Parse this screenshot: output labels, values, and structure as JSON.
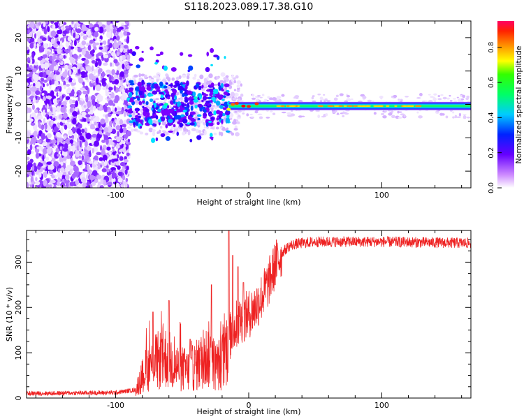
{
  "title": "S118.2023.089.17.38.G10",
  "colors": {
    "snr_line": "#ee2222",
    "spectrogram_noise": "#9933ff"
  },
  "chart_data": [
    {
      "type": "heatmap",
      "name": "spectrogram",
      "xlabel": "Height of straight line (km)",
      "ylabel": "Frequency (Hz)",
      "xlim": [
        -167,
        167
      ],
      "ylim": [
        -25,
        25
      ],
      "xticks": [
        -100,
        0,
        100
      ],
      "yticks": [
        -20,
        -10,
        0,
        10,
        20
      ],
      "colorbar": {
        "label": "Normalized spectral amplitude",
        "range": [
          0.0,
          0.95
        ],
        "ticks": [
          "0.0",
          "0.2",
          "0.4",
          "0.6",
          "0.8"
        ]
      },
      "features": {
        "noise_region_x": [
          -167,
          -90
        ],
        "scatter_region_x": [
          -90,
          -15
        ],
        "band_region_x": [
          -15,
          167
        ],
        "band_center_freq_hz": -0.5
      }
    },
    {
      "type": "line",
      "name": "snr",
      "xlabel": "Height of straight line (km)",
      "ylabel": "SNR (10 * v/v)",
      "xlim": [
        -167,
        167
      ],
      "ylim": [
        0,
        370
      ],
      "xticks": [
        -100,
        0,
        100
      ],
      "yticks": [
        0,
        100,
        200,
        300
      ],
      "profile": [
        [
          -167,
          10
        ],
        [
          -100,
          12
        ],
        [
          -85,
          18
        ],
        [
          -78,
          60
        ],
        [
          -70,
          80
        ],
        [
          -62,
          90
        ],
        [
          -55,
          70
        ],
        [
          -45,
          60
        ],
        [
          -38,
          75
        ],
        [
          -30,
          95
        ],
        [
          -25,
          70
        ],
        [
          -20,
          80
        ],
        [
          -15,
          130
        ],
        [
          -10,
          160
        ],
        [
          -5,
          175
        ],
        [
          0,
          185
        ],
        [
          5,
          200
        ],
        [
          10,
          225
        ],
        [
          15,
          255
        ],
        [
          20,
          295
        ],
        [
          25,
          320
        ],
        [
          30,
          335
        ],
        [
          35,
          340
        ],
        [
          50,
          345
        ],
        [
          100,
          345
        ],
        [
          167,
          342
        ]
      ],
      "spikes": [
        {
          "x": -72,
          "y": 190
        },
        {
          "x": -60,
          "y": 215
        },
        {
          "x": -44,
          "y": 130
        },
        {
          "x": -28,
          "y": 250
        },
        {
          "x": -15,
          "y": 370
        },
        {
          "x": -12,
          "y": 315
        },
        {
          "x": -8,
          "y": 290
        },
        {
          "x": -4,
          "y": 255
        }
      ]
    }
  ]
}
